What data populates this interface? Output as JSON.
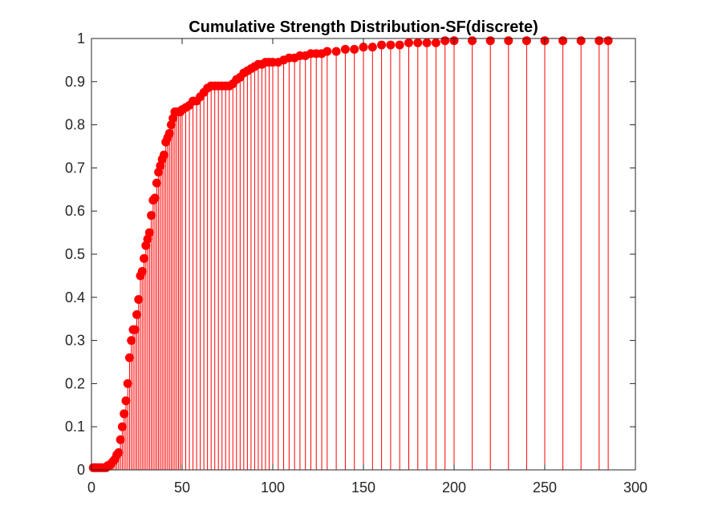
{
  "chart_data": {
    "type": "stem",
    "title": "Cumulative Strength Distribution-SF(discrete)",
    "xlabel": "",
    "ylabel": "",
    "xlim": [
      0,
      300
    ],
    "ylim": [
      0,
      1
    ],
    "x_ticks": [
      "0",
      "50",
      "100",
      "150",
      "200",
      "250",
      "300"
    ],
    "y_ticks": [
      "0",
      "0.1",
      "0.2",
      "0.3",
      "0.4",
      "0.5",
      "0.6",
      "0.7",
      "0.8",
      "0.9",
      "1"
    ],
    "grid": false,
    "legend": "none",
    "marker": "filled-circle",
    "color": "#ff0000",
    "series": [
      {
        "x": [
          1,
          2,
          3,
          4,
          5,
          6,
          7,
          8,
          9,
          10,
          11,
          12,
          13,
          14,
          15,
          16,
          17,
          18,
          19,
          20,
          21,
          22,
          23,
          24,
          25,
          26,
          27,
          28,
          29,
          30,
          31,
          32,
          33,
          34,
          35,
          36,
          37,
          38,
          39,
          40,
          41,
          42,
          43,
          44,
          45,
          46,
          47,
          48,
          49,
          50,
          52,
          54,
          56,
          58,
          60,
          62,
          64,
          66,
          68,
          70,
          72,
          74,
          76,
          78,
          80,
          82,
          84,
          86,
          88,
          90,
          92,
          94,
          96,
          98,
          100,
          103,
          106,
          109,
          112,
          115,
          118,
          121,
          124,
          127,
          130,
          135,
          140,
          145,
          150,
          155,
          160,
          165,
          170,
          175,
          180,
          185,
          190,
          195,
          200,
          210,
          220,
          230,
          240,
          250,
          260,
          270,
          280,
          285
        ],
        "y": [
          0.005,
          0.005,
          0.005,
          0.005,
          0.005,
          0.005,
          0.005,
          0.005,
          0.01,
          0.01,
          0.015,
          0.02,
          0.025,
          0.035,
          0.04,
          0.07,
          0.1,
          0.13,
          0.16,
          0.2,
          0.26,
          0.3,
          0.325,
          0.325,
          0.36,
          0.395,
          0.45,
          0.46,
          0.49,
          0.52,
          0.535,
          0.55,
          0.59,
          0.625,
          0.63,
          0.665,
          0.69,
          0.705,
          0.72,
          0.73,
          0.76,
          0.77,
          0.78,
          0.8,
          0.815,
          0.83,
          0.83,
          0.83,
          0.83,
          0.835,
          0.84,
          0.845,
          0.855,
          0.855,
          0.865,
          0.875,
          0.885,
          0.89,
          0.89,
          0.89,
          0.89,
          0.89,
          0.89,
          0.895,
          0.905,
          0.91,
          0.92,
          0.925,
          0.93,
          0.935,
          0.94,
          0.94,
          0.945,
          0.945,
          0.945,
          0.945,
          0.95,
          0.955,
          0.955,
          0.96,
          0.96,
          0.965,
          0.965,
          0.965,
          0.97,
          0.97,
          0.975,
          0.975,
          0.98,
          0.98,
          0.985,
          0.985,
          0.985,
          0.99,
          0.99,
          0.99,
          0.99,
          0.995,
          0.995,
          0.995,
          0.995,
          0.995,
          0.995,
          0.995,
          0.995,
          0.995,
          0.995,
          0.995
        ]
      }
    ]
  }
}
